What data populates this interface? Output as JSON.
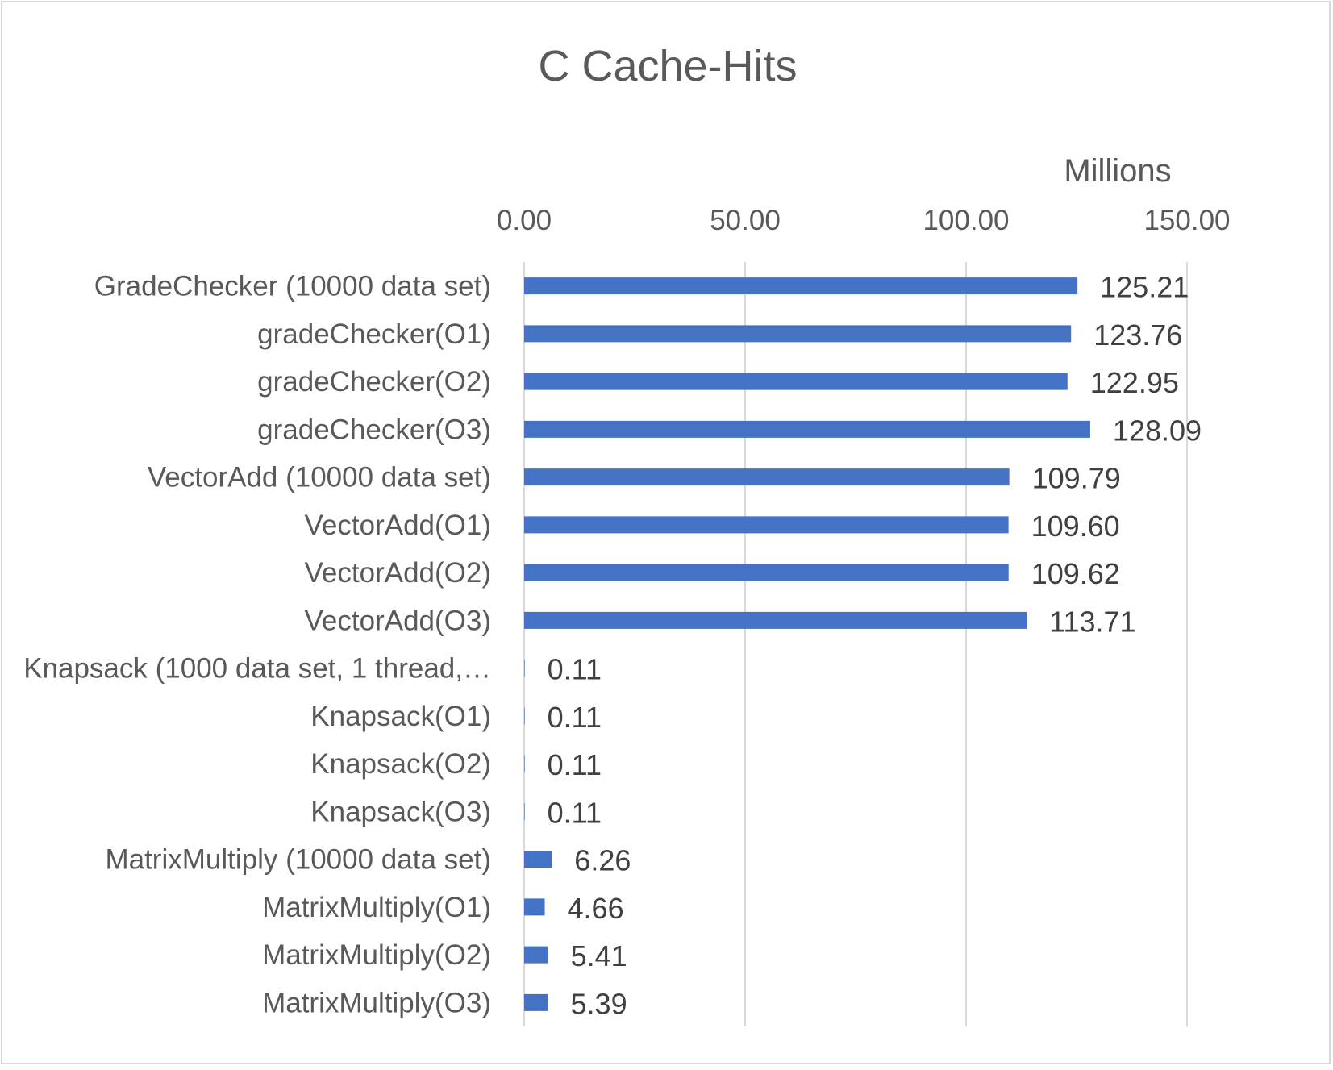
{
  "chart_data": {
    "type": "bar",
    "orientation": "horizontal",
    "title": "C Cache-Hits",
    "xlabel": "",
    "ylabel": "",
    "axis_unit_label": "Millions",
    "xlim": [
      0,
      150
    ],
    "x_ticks": [
      "0.00",
      "50.00",
      "100.00",
      "150.00"
    ],
    "grid": true,
    "legend": "none",
    "bar_color": "#4472C4",
    "categories": [
      "GradeChecker (10000 data set)",
      "gradeChecker(O1)",
      "gradeChecker(O2)",
      "gradeChecker(O3)",
      "VectorAdd (10000 data set)",
      "VectorAdd(O1)",
      "VectorAdd(O2)",
      "VectorAdd(O3)",
      "Knapsack (1000 data set, 1 thread,…",
      "Knapsack(O1)",
      "Knapsack(O2)",
      "Knapsack(O3)",
      "MatrixMultiply (10000 data set)",
      "MatrixMultiply(O1)",
      "MatrixMultiply(O2)",
      "MatrixMultiply(O3)"
    ],
    "values": [
      125.21,
      123.76,
      122.95,
      128.09,
      109.79,
      109.6,
      109.62,
      113.71,
      0.11,
      0.11,
      0.11,
      0.11,
      6.26,
      4.66,
      5.41,
      5.39
    ],
    "data_labels": [
      "125.21",
      "123.76",
      "122.95",
      "128.09",
      "109.79",
      "109.60",
      "109.62",
      "113.71",
      "0.11",
      "0.11",
      "0.11",
      "0.11",
      "6.26",
      "4.66",
      "5.41",
      "5.39"
    ]
  }
}
